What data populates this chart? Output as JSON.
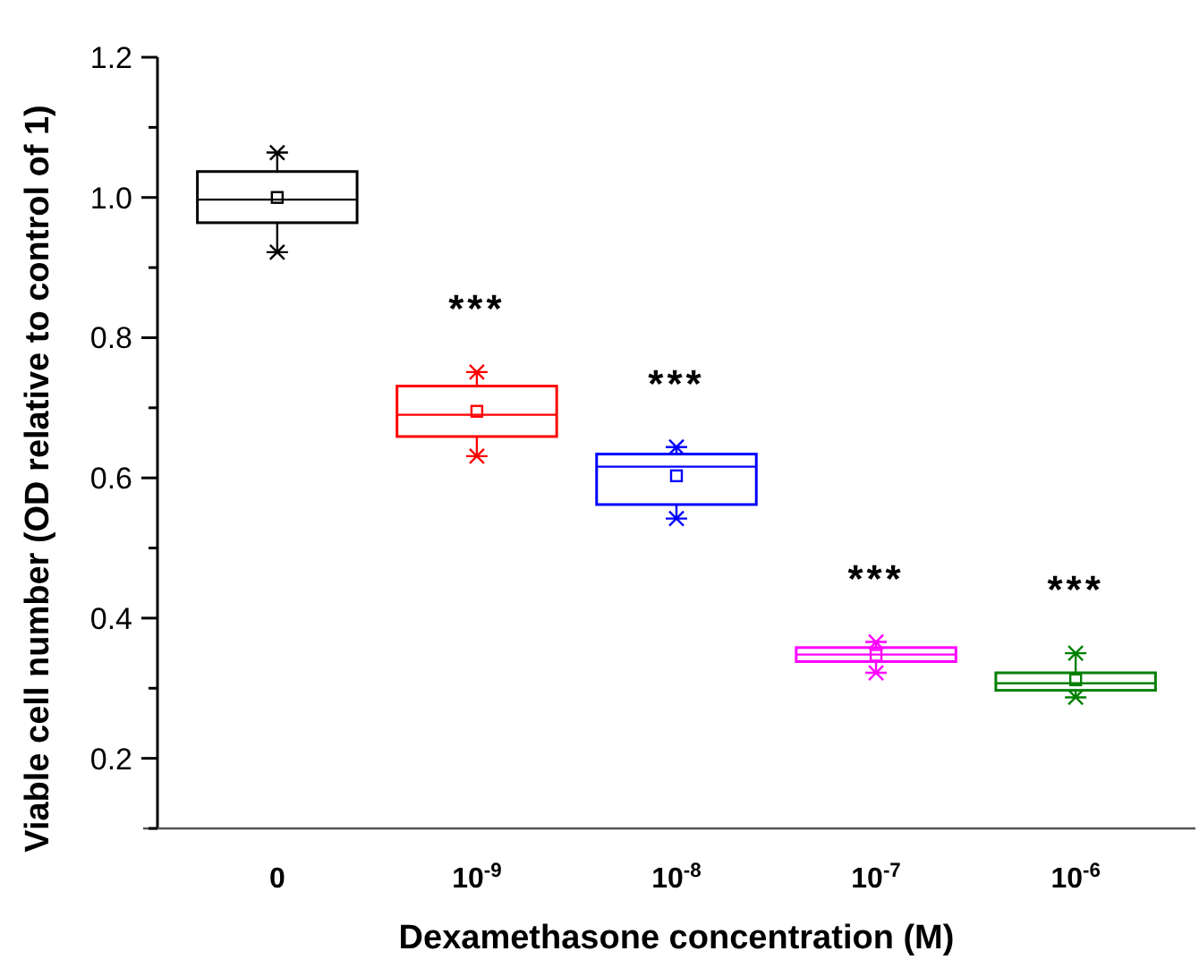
{
  "chart_data": {
    "type": "box",
    "xlabel": "Dexamethasone concentration (M)",
    "ylabel": "Viable cell number (OD relative to control of 1)",
    "categories": [
      "0",
      "10$^{-9}$",
      "10$^{-8}$",
      "10$^{-7}$",
      "10$^{-6}$"
    ],
    "colors": [
      "#000000",
      "#ff0000",
      "#0000ff",
      "#ff00ff",
      "#008000"
    ],
    "boxes": [
      {
        "low": 0.922,
        "q1": 0.964,
        "median": 0.997,
        "q3": 1.037,
        "high": 1.064,
        "mean": 1.0
      },
      {
        "low": 0.631,
        "q1": 0.659,
        "median": 0.69,
        "q3": 0.731,
        "high": 0.751,
        "mean": 0.695
      },
      {
        "low": 0.542,
        "q1": 0.562,
        "median": 0.616,
        "q3": 0.634,
        "high": 0.644,
        "mean": 0.603
      },
      {
        "low": 0.322,
        "q1": 0.338,
        "median": 0.348,
        "q3": 0.358,
        "high": 0.366,
        "mean": 0.347
      },
      {
        "low": 0.287,
        "q1": 0.297,
        "median": 0.307,
        "q3": 0.322,
        "high": 0.35,
        "mean": 0.312
      }
    ],
    "ylim": [
      0.1,
      1.2
    ],
    "yticks": [
      {
        "value": 0.1,
        "label": null
      },
      {
        "value": 0.2,
        "label": "0.2"
      },
      {
        "value": 0.3,
        "label": null
      },
      {
        "value": 0.4,
        "label": "0.4"
      },
      {
        "value": 0.5,
        "label": null
      },
      {
        "value": 0.6,
        "label": "0.6"
      },
      {
        "value": 0.7,
        "label": null
      },
      {
        "value": 0.8,
        "label": "0.8"
      },
      {
        "value": 0.9,
        "label": null
      },
      {
        "value": 1.0,
        "label": "1.0"
      },
      {
        "value": 1.1,
        "label": null
      },
      {
        "value": 1.2,
        "label": "1.2"
      }
    ],
    "annotations": [
      "***",
      "***",
      "***",
      "***"
    ]
  }
}
